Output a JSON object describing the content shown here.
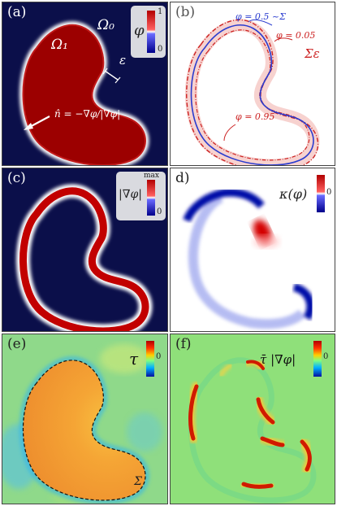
{
  "panels": {
    "a": {
      "label": "(a)",
      "omega0": "Ω₀",
      "omega1": "Ω₁",
      "epsilon": "ε",
      "normal_formula": "n̂ = −∇φ/|∇φ|",
      "colorbar_symbol": "φ",
      "colorbar_max": "1",
      "colorbar_min": "0"
    },
    "b": {
      "label": "(b)",
      "annot_mid": "φ = 0.5 ~Σ",
      "annot_outer": "φ = 0.05",
      "annot_inner": "φ = 0.95",
      "sigma_eps": "Σε"
    },
    "c": {
      "label": "(c)",
      "colorbar_symbol": "|∇φ|",
      "colorbar_max": "max",
      "colorbar_min": "0"
    },
    "d": {
      "label": "d)",
      "colorbar_symbol": "κ(φ)",
      "colorbar_tick": "0"
    },
    "e": {
      "label": "(e)",
      "colorbar_symbol": "τ",
      "colorbar_tick": "0",
      "sigma": "Σ"
    },
    "f": {
      "label": "(f)",
      "colorbar_symbol": "τ̄ |∇φ|",
      "colorbar_tick": "0"
    }
  },
  "colors": {
    "navy": "#0b0f4a",
    "red": "#c40000",
    "green": "#8fe07a",
    "orange": "#f4a236",
    "blue": "#2a3ccf"
  }
}
